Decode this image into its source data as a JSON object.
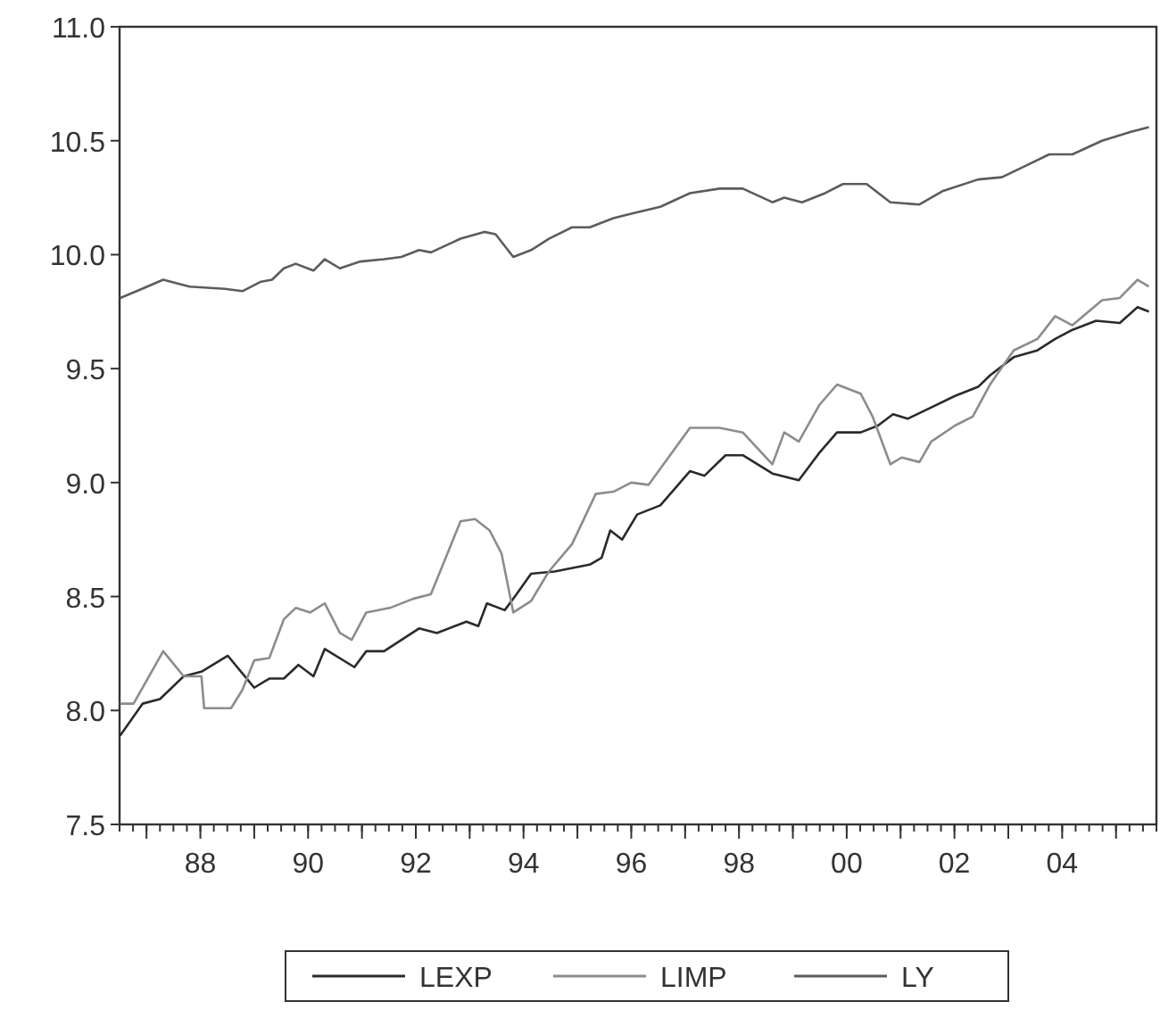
{
  "chart_data": {
    "type": "line",
    "xlim": [
      1986.5,
      2005.75
    ],
    "ylim": [
      7.5,
      11.0
    ],
    "xticks": [
      {
        "value": 1987,
        "label": null
      },
      {
        "value": 1988,
        "label": "88"
      },
      {
        "value": 1989,
        "label": null
      },
      {
        "value": 1990,
        "label": "90"
      },
      {
        "value": 1991,
        "label": null
      },
      {
        "value": 1992,
        "label": "92"
      },
      {
        "value": 1993,
        "label": null
      },
      {
        "value": 1994,
        "label": "94"
      },
      {
        "value": 1995,
        "label": null
      },
      {
        "value": 1996,
        "label": "96"
      },
      {
        "value": 1997,
        "label": null
      },
      {
        "value": 1998,
        "label": "98"
      },
      {
        "value": 1999,
        "label": null
      },
      {
        "value": 2000,
        "label": "00"
      },
      {
        "value": 2001,
        "label": null
      },
      {
        "value": 2002,
        "label": "02"
      },
      {
        "value": 2003,
        "label": null
      },
      {
        "value": 2004,
        "label": "04"
      },
      {
        "value": 2005,
        "label": null
      }
    ],
    "yticks": [
      {
        "value": 7.5,
        "label": "7.5"
      },
      {
        "value": 8.0,
        "label": "8.0"
      },
      {
        "value": 8.5,
        "label": "8.5"
      },
      {
        "value": 9.0,
        "label": "9.0"
      },
      {
        "value": 9.5,
        "label": "9.5"
      },
      {
        "value": 10.0,
        "label": "10.0"
      },
      {
        "value": 10.5,
        "label": "10.5"
      },
      {
        "value": 11.0,
        "label": "11.0"
      }
    ],
    "grid": false,
    "legend": "bottom",
    "line_style": "solid",
    "marker": "none",
    "series": [
      {
        "name": "LEXP",
        "color": "#2a2a2a",
        "x": [
          1986.51,
          1986.93,
          1987.25,
          1987.69,
          1988.02,
          1988.51,
          1989.0,
          1989.28,
          1989.55,
          1989.82,
          1990.1,
          1990.31,
          1990.86,
          1991.08,
          1991.41,
          1992.06,
          1992.39,
          1992.94,
          1993.16,
          1993.32,
          1993.65,
          1993.87,
          1994.14,
          1994.58,
          1995.23,
          1995.45,
          1995.61,
          1995.83,
          1996.11,
          1996.54,
          1997.09,
          1997.36,
          1997.75,
          1998.07,
          1998.62,
          1999.11,
          1999.49,
          1999.82,
          2000.26,
          2000.58,
          2000.86,
          2001.13,
          2001.57,
          2002.01,
          2002.44,
          2002.66,
          2003.1,
          2003.54,
          2003.87,
          2004.19,
          2004.63,
          2005.07,
          2005.4,
          2005.61
        ],
        "values": [
          7.89,
          8.03,
          8.05,
          8.15,
          8.17,
          8.24,
          8.1,
          8.14,
          8.14,
          8.2,
          8.15,
          8.27,
          8.19,
          8.26,
          8.26,
          8.36,
          8.34,
          8.39,
          8.37,
          8.47,
          8.44,
          8.51,
          8.6,
          8.61,
          8.64,
          8.67,
          8.79,
          8.75,
          8.86,
          8.9,
          9.05,
          9.03,
          9.12,
          9.12,
          9.04,
          9.01,
          9.13,
          9.22,
          9.22,
          9.25,
          9.3,
          9.28,
          9.33,
          9.38,
          9.42,
          9.47,
          9.55,
          9.58,
          9.63,
          9.67,
          9.71,
          9.7,
          9.77,
          9.75
        ]
      },
      {
        "name": "LIMP",
        "color": "#8c8c8c",
        "x": [
          1986.51,
          1986.76,
          1987.31,
          1987.69,
          1988.02,
          1988.07,
          1988.57,
          1988.78,
          1989.0,
          1989.28,
          1989.55,
          1989.77,
          1990.04,
          1990.31,
          1990.59,
          1990.81,
          1991.08,
          1991.52,
          1991.95,
          1992.28,
          1992.83,
          1993.1,
          1993.37,
          1993.59,
          1993.81,
          1994.14,
          1994.47,
          1994.9,
          1995.34,
          1995.67,
          1996.0,
          1996.32,
          1997.09,
          1997.64,
          1998.07,
          1998.62,
          1998.84,
          1999.11,
          1999.49,
          1999.82,
          2000.26,
          2000.48,
          2000.81,
          2001.02,
          2001.35,
          2001.57,
          2002.01,
          2002.34,
          2002.66,
          2003.1,
          2003.54,
          2003.87,
          2004.19,
          2004.74,
          2005.07,
          2005.4,
          2005.61
        ],
        "values": [
          8.03,
          8.03,
          8.26,
          8.15,
          8.15,
          8.01,
          8.01,
          8.09,
          8.22,
          8.23,
          8.4,
          8.45,
          8.43,
          8.47,
          8.34,
          8.31,
          8.43,
          8.45,
          8.49,
          8.51,
          8.83,
          8.84,
          8.79,
          8.69,
          8.43,
          8.48,
          8.61,
          8.73,
          8.95,
          8.96,
          9.0,
          8.99,
          9.24,
          9.24,
          9.22,
          9.08,
          9.22,
          9.18,
          9.34,
          9.43,
          9.39,
          9.29,
          9.08,
          9.11,
          9.09,
          9.18,
          9.25,
          9.29,
          9.43,
          9.58,
          9.63,
          9.73,
          9.69,
          9.8,
          9.81,
          9.89,
          9.86
        ]
      },
      {
        "name": "LY",
        "color": "#5c5c5c",
        "x": [
          1986.51,
          1986.82,
          1987.31,
          1987.8,
          1988.46,
          1988.78,
          1989.11,
          1989.33,
          1989.55,
          1989.77,
          1990.1,
          1990.31,
          1990.59,
          1990.97,
          1991.41,
          1991.73,
          1992.06,
          1992.28,
          1992.83,
          1993.27,
          1993.48,
          1993.81,
          1994.14,
          1994.47,
          1994.9,
          1995.23,
          1995.67,
          1996.0,
          1996.54,
          1997.09,
          1997.64,
          1998.07,
          1998.62,
          1998.84,
          1999.17,
          1999.6,
          1999.93,
          2000.37,
          2000.81,
          2001.35,
          2001.79,
          2002.44,
          2002.88,
          2003.32,
          2003.76,
          2004.19,
          2004.74,
          2005.29,
          2005.61
        ],
        "values": [
          9.81,
          9.84,
          9.89,
          9.86,
          9.85,
          9.84,
          9.88,
          9.89,
          9.94,
          9.96,
          9.93,
          9.98,
          9.94,
          9.97,
          9.98,
          9.99,
          10.02,
          10.01,
          10.07,
          10.1,
          10.09,
          9.99,
          10.02,
          10.07,
          10.12,
          10.12,
          10.16,
          10.18,
          10.21,
          10.27,
          10.29,
          10.29,
          10.23,
          10.25,
          10.23,
          10.27,
          10.31,
          10.31,
          10.23,
          10.22,
          10.28,
          10.33,
          10.34,
          10.39,
          10.44,
          10.44,
          10.5,
          10.54,
          10.56
        ]
      }
    ]
  }
}
